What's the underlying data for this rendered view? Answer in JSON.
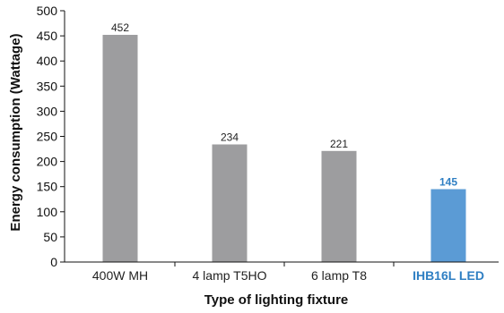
{
  "chart_data": {
    "type": "bar",
    "categories": [
      "400W MH",
      "4 lamp T5HO",
      "6 lamp T8",
      "IHB16L LED"
    ],
    "values": [
      452,
      234,
      221,
      145
    ],
    "data_labels": [
      "452",
      "234",
      "221",
      "145"
    ],
    "highlight_index": 3,
    "xlabel": "Type of lighting fixture",
    "ylabel": "Energy consumption (Wattage)",
    "ylim": [
      0,
      500
    ],
    "yticks": [
      0,
      50,
      100,
      150,
      200,
      250,
      300,
      350,
      400,
      450,
      500
    ],
    "grid": false,
    "legend": "none",
    "colors": {
      "bar": "#9d9d9f",
      "highlight_bar": "#5b9bd5",
      "highlight_text": "#2f7fc3",
      "axis": "#111111"
    }
  }
}
